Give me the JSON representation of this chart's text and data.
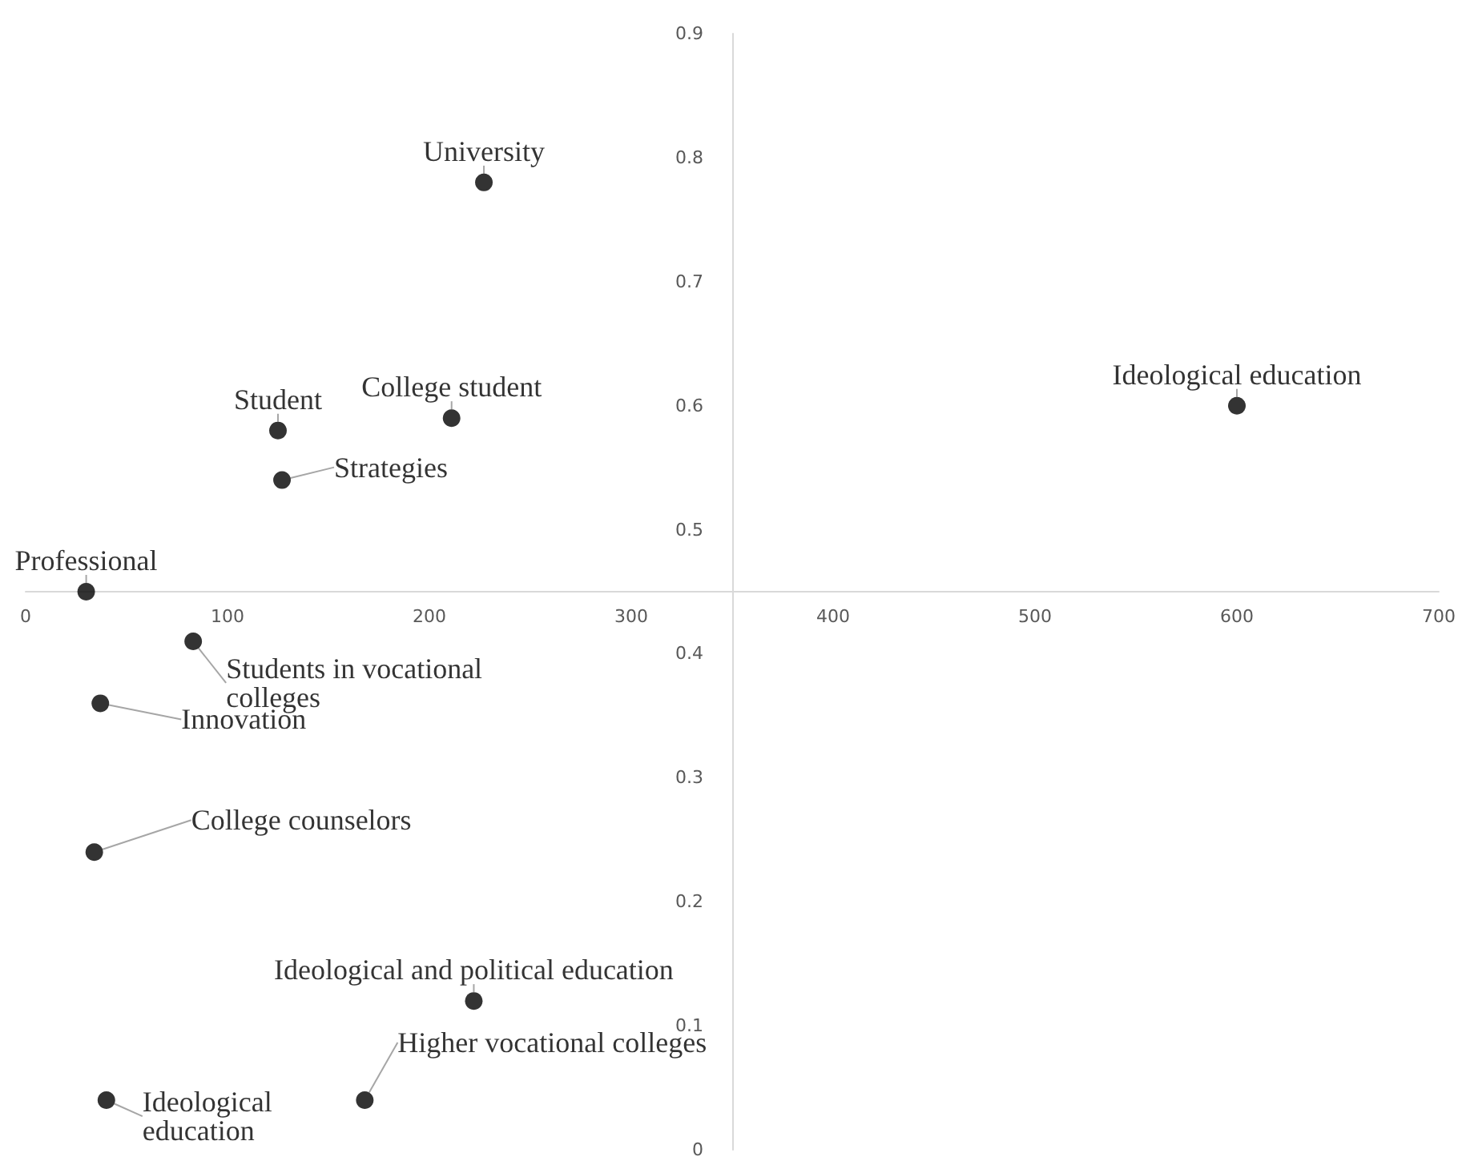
{
  "chart_data": {
    "type": "scatter",
    "xlim": [
      0,
      700
    ],
    "xticks": [
      0,
      100,
      200,
      300,
      400,
      500,
      600,
      700
    ],
    "ylim": [
      0,
      0.9
    ],
    "yticks": [
      0,
      0.1,
      0.2,
      0.3,
      0.4,
      0.5,
      0.6,
      0.7,
      0.8,
      0.9
    ],
    "grid": false,
    "marker": "circle",
    "series": [
      {
        "color": "#000000",
        "x": [
          227,
          211,
          125,
          127,
          30,
          600,
          83,
          37,
          34,
          222,
          168,
          40
        ],
        "values": [
          0.78,
          0.59,
          0.58,
          0.54,
          0.45,
          0.6,
          0.41,
          0.36,
          0.24,
          0.12,
          0.04,
          0.04
        ],
        "value_labels": [
          "University",
          "College student",
          "Student",
          "Strategies",
          "Professional",
          "Ideological education",
          "Students in vocational colleges",
          "Innovation",
          "College counselors",
          "Ideological and political education",
          "Higher vocational colleges",
          "Ideological education"
        ]
      }
    ]
  }
}
